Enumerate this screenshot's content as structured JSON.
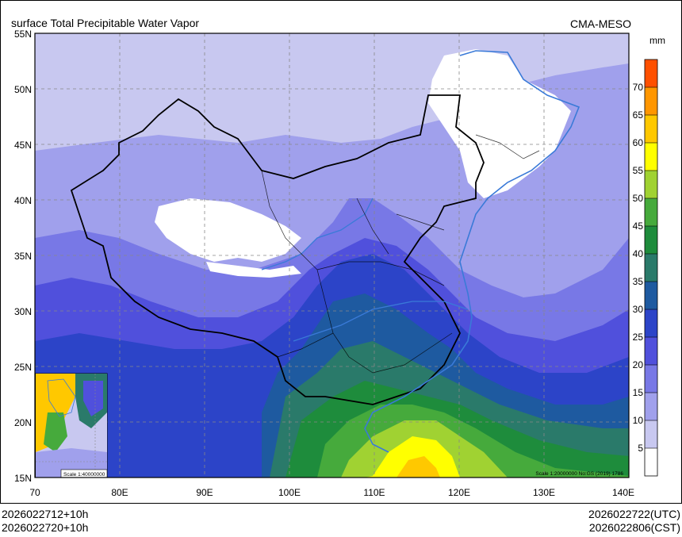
{
  "header": {
    "title": "surface Total Precipitable Water Vapor",
    "source": "CMA-MESO"
  },
  "axes": {
    "lat_labels": [
      "55N",
      "50N",
      "45N",
      "40N",
      "35N",
      "30N",
      "25N",
      "20N",
      "15N"
    ],
    "lon_labels": [
      "70",
      "80E",
      "90E",
      "100E",
      "110E",
      "120E",
      "130E",
      "140E"
    ]
  },
  "colorbar": {
    "unit": "mm",
    "levels": [
      "5",
      "10",
      "15",
      "20",
      "25",
      "30",
      "35",
      "40",
      "45",
      "50",
      "55",
      "60",
      "65",
      "70"
    ],
    "colors": [
      "#ffffff",
      "#c8c8f0",
      "#a0a0ec",
      "#7878e6",
      "#5050dc",
      "#2c44c8",
      "#1e5aa0",
      "#2a7a6a",
      "#1e8c3c",
      "#46aa3c",
      "#a0d232",
      "#ffff00",
      "#ffc800",
      "#ff9600",
      "#ff5000"
    ]
  },
  "inset": {
    "scale": "Scale 1:40000000"
  },
  "map_scale_note": "Scale 1:20000000 No:GS (2019) 1786",
  "footer": {
    "left_line1": "2026022712+10h",
    "left_line2": "2026022720+10h",
    "right_line1": "2026022722(UTC)",
    "right_line2": "2026022806(CST)"
  }
}
